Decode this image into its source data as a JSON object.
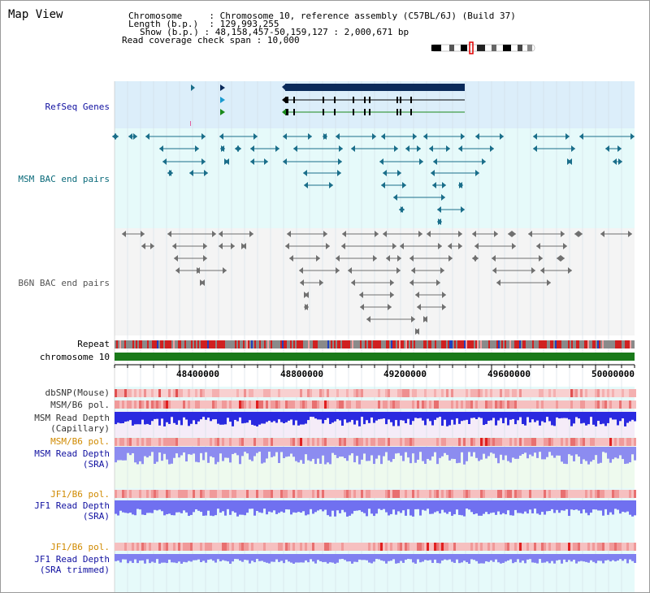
{
  "header": {
    "title": "Map View",
    "chromosome_label": "Chromosome",
    "chromosome_value": "Chromosome 10, reference assembly (C57BL/6J) (Build 37)",
    "length_label": "Length (b.p.)",
    "length_value": "129,993,255",
    "show_label": "Show (b.p.)",
    "show_value": "48,158,457-50,159,127 : 2,000,671 bp",
    "coverage_label": "Read coverage check span",
    "coverage_value": "10,000"
  },
  "tracks": {
    "refseq": "RefSeq Genes",
    "msm_bac": "MSM BAC end pairs",
    "b6n_bac": "B6N BAC end pairs",
    "repeat": "Repeat",
    "chromosome": "chromosome 10",
    "dbsnp": "dbSNP(Mouse)",
    "msm_b6_pol_1": "MSM/B6 pol.",
    "msm_read_cap_1": "MSM Read Depth",
    "msm_read_cap_2": "(Capillary)",
    "msm_b6_pol_2": "MSM/B6 pol.",
    "msm_read_sra_1": "MSM Read Depth",
    "msm_read_sra_2": "(SRA)",
    "jf1_b6_pol_1": "JF1/B6 pol.",
    "jf1_read_sra_1": "JF1 Read Depth",
    "jf1_read_sra_2": "(SRA)",
    "jf1_b6_pol_2": "JF1/B6 pol.",
    "jf1_read_trim_1": "JF1 Read Depth",
    "jf1_read_trim_2": "(SRA trimmed)"
  },
  "axis": {
    "ticks": [
      "48400000",
      "48800000",
      "49200000",
      "49600000",
      "50000000"
    ]
  },
  "colors": {
    "refseq_bg": "#dceefa",
    "bac_bg": "#e6fafa",
    "gene_dark": "#0a2a5a",
    "msm_feature": "#1a6e8a",
    "b6n_feature": "#707070",
    "chromosome_bar": "#1a7a1a",
    "label_blue": "#1010a0",
    "label_teal": "#0a6a7a",
    "label_orange": "#d08a00"
  }
}
